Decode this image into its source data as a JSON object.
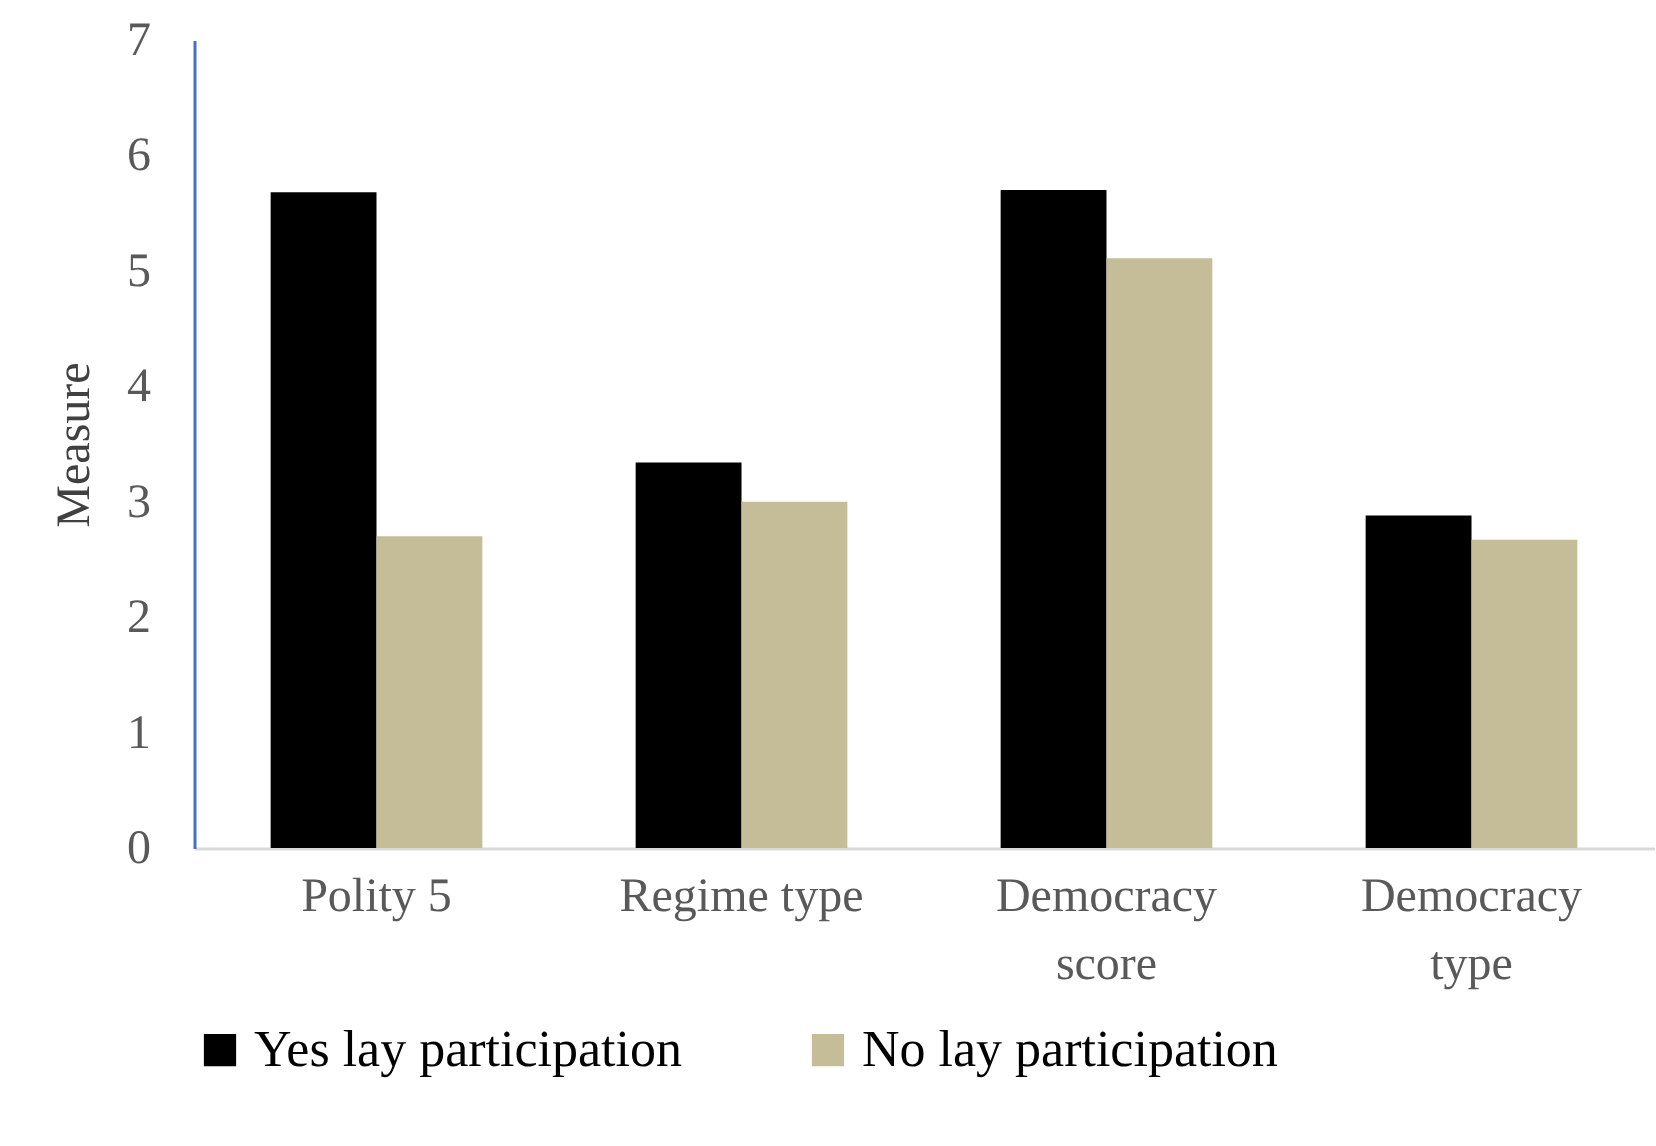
{
  "chart_data": {
    "type": "bar",
    "ylabel": "Measure",
    "categories": [
      "Polity 5",
      "Regime type",
      "Democracy score",
      "Democracy type"
    ],
    "series": [
      {
        "name": "Yes lay participation",
        "color": "#000000",
        "values": [
          5.68,
          3.34,
          5.7,
          2.88
        ]
      },
      {
        "name": "No lay participation",
        "color": "#c4bd97",
        "values": [
          2.7,
          3.0,
          5.11,
          2.67
        ]
      }
    ],
    "ylim": [
      0,
      7
    ],
    "yticks": [
      0,
      1,
      2,
      3,
      4,
      5,
      6,
      7
    ],
    "grid": false,
    "legend": "bottom"
  }
}
